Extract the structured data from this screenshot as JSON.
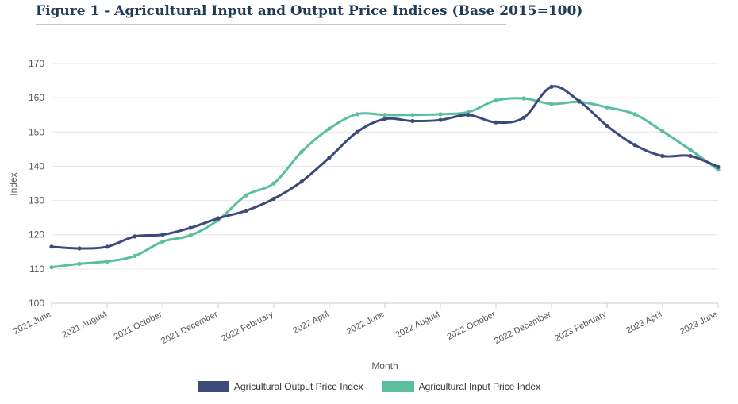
{
  "chart_data": {
    "type": "line",
    "title": "Figure 1 - Agricultural Input and Output Price Indices (Base 2015=100)",
    "xlabel": "Month",
    "ylabel": "Index",
    "ylim": [
      100,
      170
    ],
    "yticks": [
      100,
      110,
      120,
      130,
      140,
      150,
      160,
      170
    ],
    "categories": [
      "2021 June",
      "2021 July",
      "2021 August",
      "2021 September",
      "2021 October",
      "2021 November",
      "2021 December",
      "2022 January",
      "2022 February",
      "2022 March",
      "2022 April",
      "2022 May",
      "2022 June",
      "2022 July",
      "2022 August",
      "2022 September",
      "2022 October",
      "2022 November",
      "2022 December",
      "2023 January",
      "2023 February",
      "2023 March",
      "2023 April",
      "2023 May",
      "2023 June"
    ],
    "tick_labels": [
      "2021 June",
      "2021 August",
      "2021 October",
      "2021 December",
      "2022 February",
      "2022 April",
      "2022 June",
      "2022 August",
      "2022 October",
      "2022 December",
      "2023 February",
      "2023 April",
      "2023 June"
    ],
    "series": [
      {
        "name": "Agricultural Output Price Index",
        "color": "#3b4a7a",
        "values": [
          116.5,
          116.0,
          116.5,
          119.5,
          120.0,
          122.0,
          124.8,
          127.0,
          130.5,
          135.5,
          142.5,
          150.0,
          153.8,
          153.2,
          153.5,
          155.0,
          152.8,
          154.2,
          163.2,
          159.0,
          151.8,
          146.2,
          143.0,
          143.0,
          139.8
        ]
      },
      {
        "name": "Agricultural Input Price Index",
        "color": "#5bbf9e",
        "values": [
          110.5,
          111.5,
          112.2,
          113.8,
          118.0,
          119.8,
          124.3,
          131.5,
          135.0,
          144.2,
          151.0,
          155.2,
          155.0,
          155.0,
          155.2,
          155.8,
          159.2,
          159.8,
          158.2,
          158.8,
          157.2,
          155.2,
          150.2,
          144.8,
          139.0
        ]
      }
    ],
    "legend_position": "bottom-center"
  }
}
